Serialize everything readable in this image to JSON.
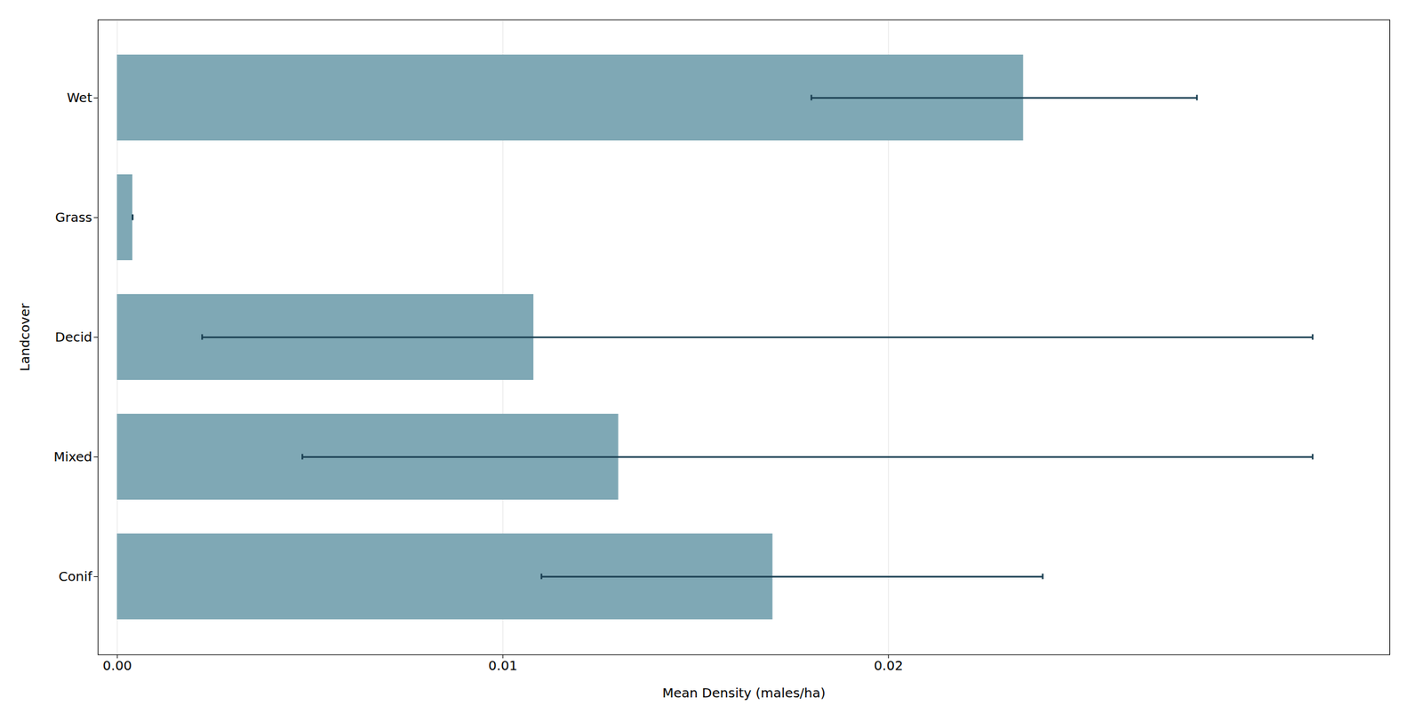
{
  "chart_data": {
    "type": "bar",
    "orientation": "horizontal",
    "categories": [
      "Wet",
      "Grass",
      "Decid",
      "Mixed",
      "Conif"
    ],
    "values": [
      0.0235,
      0.0004,
      0.0108,
      0.013,
      0.017
    ],
    "color": "#7fa8b5",
    "error_bars": {
      "low": [
        0.018,
        0.0004,
        0.0022,
        0.0048,
        0.011
      ],
      "high": [
        0.028,
        0.0004,
        0.031,
        0.031,
        0.024
      ],
      "color": "#1a3f52"
    },
    "xlabel": "Mean Density (males/ha)",
    "ylabel": "Landcover",
    "xlim": [
      -0.0005,
      0.033
    ],
    "xticks": [
      {
        "value": 0,
        "label": "0.00"
      },
      0.01,
      0.02
    ],
    "grid": true
  }
}
